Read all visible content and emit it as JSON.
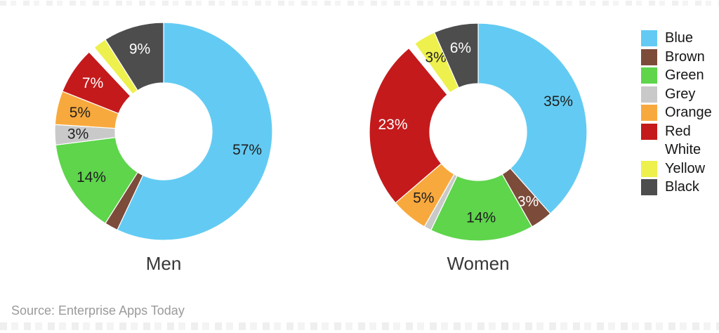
{
  "source_note": "Source: Enterprise Apps Today",
  "palette": [
    {
      "name": "Blue",
      "hex": "#63cbf3",
      "label_text": "#1f1f1f"
    },
    {
      "name": "Brown",
      "hex": "#7c4b3a",
      "label_text": "#ffffff"
    },
    {
      "name": "Green",
      "hex": "#5ed54b",
      "label_text": "#1f1f1f"
    },
    {
      "name": "Grey",
      "hex": "#c9c9c9",
      "label_text": "#1f1f1f"
    },
    {
      "name": "Orange",
      "hex": "#f8a93d",
      "label_text": "#1f1f1f"
    },
    {
      "name": "Red",
      "hex": "#c41a1c",
      "label_text": "#ffffff"
    },
    {
      "name": "White",
      "hex": "#ffffff",
      "label_text": "#1f1f1f"
    },
    {
      "name": "Yellow",
      "hex": "#eef04d",
      "label_text": "#1f1f1f"
    },
    {
      "name": "Black",
      "hex": "#4d4d4d",
      "label_text": "#ffffff"
    }
  ],
  "legend": {
    "position": "right",
    "items": [
      "Blue",
      "Brown",
      "Green",
      "Grey",
      "Orange",
      "Red",
      "White",
      "Yellow",
      "Black"
    ]
  },
  "chart_data": [
    {
      "type": "pie",
      "subtype": "donut",
      "title": "Men",
      "categories": [
        "Blue",
        "Brown",
        "Green",
        "Grey",
        "Orange",
        "Red",
        "White",
        "Yellow",
        "Black"
      ],
      "values": [
        57,
        2,
        14,
        3,
        5,
        7,
        1,
        2,
        9
      ],
      "data_labels": [
        "57%",
        null,
        "14%",
        "3%",
        "5%",
        "7%",
        null,
        null,
        "9%"
      ],
      "start_angle_deg": 0,
      "direction": "clockwise",
      "legend_position": "right"
    },
    {
      "type": "pie",
      "subtype": "donut",
      "title": "Women",
      "categories": [
        "Blue",
        "Brown",
        "Green",
        "Grey",
        "Orange",
        "Red",
        "White",
        "Yellow",
        "Black"
      ],
      "values": [
        35,
        3,
        14,
        1,
        5,
        23,
        1,
        3,
        6
      ],
      "data_labels": [
        "35%",
        "3%",
        "14%",
        null,
        "5%",
        "23%",
        null,
        "3%",
        "6%"
      ],
      "start_angle_deg": 0,
      "direction": "clockwise",
      "legend_position": "right"
    }
  ]
}
